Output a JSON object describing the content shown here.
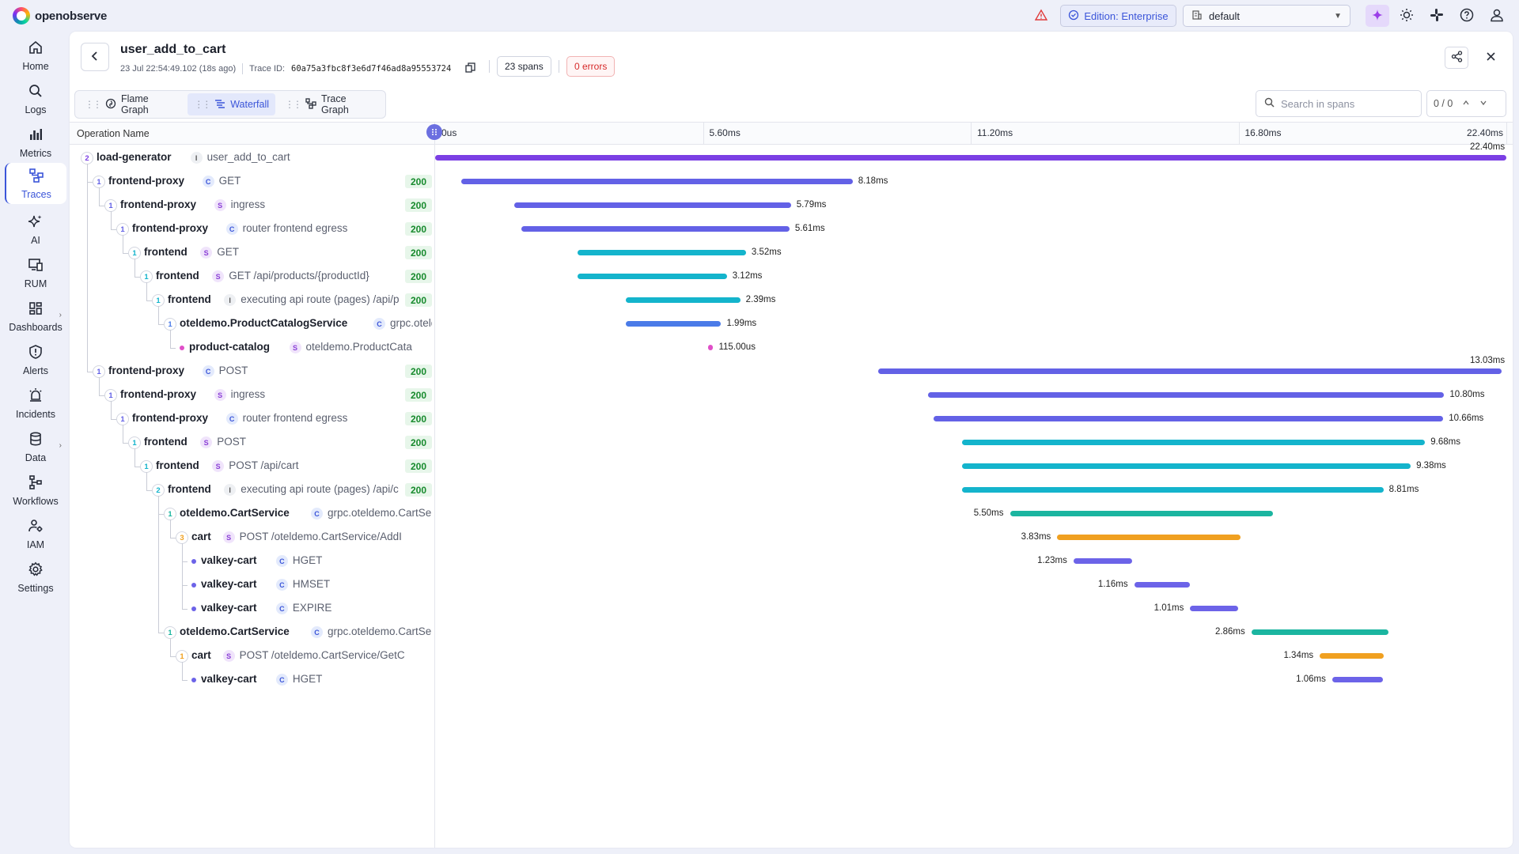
{
  "app": {
    "name": "openobserve"
  },
  "header": {
    "edition_label": "Edition: Enterprise",
    "org_select": "default"
  },
  "sidebar": {
    "items": [
      {
        "label": "Home",
        "icon": "home-icon"
      },
      {
        "label": "Logs",
        "icon": "search-icon"
      },
      {
        "label": "Metrics",
        "icon": "bar-chart-icon"
      },
      {
        "label": "Traces",
        "icon": "traces-icon"
      },
      {
        "label": "AI",
        "icon": "sparkle-icon"
      },
      {
        "label": "RUM",
        "icon": "monitor-icon"
      },
      {
        "label": "Dashboards",
        "icon": "dashboard-icon"
      },
      {
        "label": "Alerts",
        "icon": "shield-alert-icon"
      },
      {
        "label": "Incidents",
        "icon": "alarm-icon"
      },
      {
        "label": "Data",
        "icon": "database-icon"
      },
      {
        "label": "Workflows",
        "icon": "workflow-icon"
      },
      {
        "label": "IAM",
        "icon": "users-icon"
      },
      {
        "label": "Settings",
        "icon": "gear-icon"
      }
    ]
  },
  "trace": {
    "title": "user_add_to_cart",
    "timestamp": "23 Jul 22:54:49.102 (18s ago)",
    "trace_id_label": "Trace ID:",
    "trace_id": "60a75a3fbc8f3e6d7f46ad8a95553724",
    "spans": "23 spans",
    "errors": "0 errors"
  },
  "tabs": [
    {
      "label": "Flame Graph",
      "icon": "flame-icon"
    },
    {
      "label": "Waterfall",
      "icon": "waterfall-icon"
    },
    {
      "label": "Trace Graph",
      "icon": "graph-icon"
    }
  ],
  "search": {
    "placeholder": "Search in spans",
    "counter": "0 / 0"
  },
  "table": {
    "op_header": "Operation Name",
    "ticks": [
      "0us",
      "5.60ms",
      "11.20ms",
      "16.80ms",
      "22.40ms"
    ]
  },
  "colors": {
    "load-generator": "#7b3fe4",
    "frontend-proxy": "#6361e6",
    "frontend": "#14b4cc",
    "oteldemo.ProductCatalogService": "#4a7be8",
    "product-catalog": "#e04fc8",
    "oteldemo.CartService": "#1bb5a0",
    "cart": "#f0a020",
    "valkey-cart": "#6c63e8"
  },
  "spans": [
    {
      "depth": 0,
      "count": "2",
      "service": "load-generator",
      "kind": "I",
      "op": "user_add_to_cart",
      "status": "",
      "start_ms": 0.0,
      "dur_ms": 22.4,
      "dur_label": "22.40ms"
    },
    {
      "depth": 1,
      "count": "1",
      "service": "frontend-proxy",
      "kind": "C",
      "op": "GET",
      "status": "200",
      "start_ms": 0.55,
      "dur_ms": 8.18,
      "dur_label": "8.18ms"
    },
    {
      "depth": 2,
      "count": "1",
      "service": "frontend-proxy",
      "kind": "S",
      "op": "ingress",
      "status": "200",
      "start_ms": 1.65,
      "dur_ms": 5.79,
      "dur_label": "5.79ms"
    },
    {
      "depth": 3,
      "count": "1",
      "service": "frontend-proxy",
      "kind": "C",
      "op": "router frontend egress",
      "status": "200",
      "start_ms": 1.8,
      "dur_ms": 5.61,
      "dur_label": "5.61ms"
    },
    {
      "depth": 4,
      "count": "1",
      "service": "frontend",
      "kind": "S",
      "op": "GET",
      "status": "200",
      "start_ms": 2.98,
      "dur_ms": 3.52,
      "dur_label": "3.52ms"
    },
    {
      "depth": 5,
      "count": "1",
      "service": "frontend",
      "kind": "S",
      "op": "GET /api/products/{productId}",
      "status": "200",
      "start_ms": 2.98,
      "dur_ms": 3.12,
      "dur_label": "3.12ms"
    },
    {
      "depth": 6,
      "count": "1",
      "service": "frontend",
      "kind": "I",
      "op": "executing api route (pages) /api/p",
      "status": "200",
      "start_ms": 3.99,
      "dur_ms": 2.39,
      "dur_label": "2.39ms"
    },
    {
      "depth": 7,
      "count": "1",
      "service": "oteldemo.ProductCatalogService",
      "kind": "C",
      "op": "grpc.oteld",
      "status": "",
      "start_ms": 3.99,
      "dur_ms": 1.99,
      "dur_label": "1.99ms"
    },
    {
      "depth": 8,
      "count": "",
      "service": "product-catalog",
      "kind": "S",
      "op": "oteldemo.ProductCata",
      "status": "",
      "start_ms": 5.7,
      "dur_ms": 0.115,
      "dur_label": "115.00us"
    },
    {
      "depth": 1,
      "count": "1",
      "service": "frontend-proxy",
      "kind": "C",
      "op": "POST",
      "status": "200",
      "start_ms": 9.27,
      "dur_ms": 13.03,
      "dur_label": "13.03ms"
    },
    {
      "depth": 2,
      "count": "1",
      "service": "frontend-proxy",
      "kind": "S",
      "op": "ingress",
      "status": "200",
      "start_ms": 10.3,
      "dur_ms": 10.8,
      "dur_label": "10.80ms"
    },
    {
      "depth": 3,
      "count": "1",
      "service": "frontend-proxy",
      "kind": "C",
      "op": "router frontend egress",
      "status": "200",
      "start_ms": 10.42,
      "dur_ms": 10.66,
      "dur_label": "10.66ms"
    },
    {
      "depth": 4,
      "count": "1",
      "service": "frontend",
      "kind": "S",
      "op": "POST",
      "status": "200",
      "start_ms": 11.02,
      "dur_ms": 9.68,
      "dur_label": "9.68ms"
    },
    {
      "depth": 5,
      "count": "1",
      "service": "frontend",
      "kind": "S",
      "op": "POST /api/cart",
      "status": "200",
      "start_ms": 11.02,
      "dur_ms": 9.38,
      "dur_label": "9.38ms"
    },
    {
      "depth": 6,
      "count": "2",
      "service": "frontend",
      "kind": "I",
      "op": "executing api route (pages) /api/c",
      "status": "200",
      "start_ms": 11.02,
      "dur_ms": 8.81,
      "dur_label": "8.81ms"
    },
    {
      "depth": 7,
      "count": "1",
      "service": "oteldemo.CartService",
      "kind": "C",
      "op": "grpc.oteldemo.CartSe",
      "status": "",
      "start_ms": 12.02,
      "dur_ms": 5.5,
      "dur_label": "5.50ms",
      "label_left": true
    },
    {
      "depth": 8,
      "count": "3",
      "service": "cart",
      "kind": "S",
      "op": "POST /oteldemo.CartService/AddI",
      "status": "",
      "start_ms": 13.01,
      "dur_ms": 3.83,
      "dur_label": "3.83ms",
      "label_left": true
    },
    {
      "depth": 9,
      "count": "",
      "service": "valkey-cart",
      "kind": "C",
      "op": "HGET",
      "status": "",
      "start_ms": 13.35,
      "dur_ms": 1.23,
      "dur_label": "1.23ms",
      "label_left": true
    },
    {
      "depth": 9,
      "count": "",
      "service": "valkey-cart",
      "kind": "C",
      "op": "HMSET",
      "status": "",
      "start_ms": 14.62,
      "dur_ms": 1.16,
      "dur_label": "1.16ms",
      "label_left": true
    },
    {
      "depth": 9,
      "count": "",
      "service": "valkey-cart",
      "kind": "C",
      "op": "EXPIRE",
      "status": "",
      "start_ms": 15.79,
      "dur_ms": 1.01,
      "dur_label": "1.01ms",
      "label_left": true
    },
    {
      "depth": 7,
      "count": "1",
      "service": "oteldemo.CartService",
      "kind": "C",
      "op": "grpc.oteldemo.CartSe",
      "status": "",
      "start_ms": 17.07,
      "dur_ms": 2.86,
      "dur_label": "2.86ms",
      "label_left": true
    },
    {
      "depth": 8,
      "count": "1",
      "service": "cart",
      "kind": "S",
      "op": "POST /oteldemo.CartService/GetC",
      "status": "",
      "start_ms": 18.5,
      "dur_ms": 1.34,
      "dur_label": "1.34ms",
      "label_left": true
    },
    {
      "depth": 9,
      "count": "",
      "service": "valkey-cart",
      "kind": "C",
      "op": "HGET",
      "status": "",
      "start_ms": 18.76,
      "dur_ms": 1.06,
      "dur_label": "1.06ms",
      "label_left": true
    }
  ]
}
